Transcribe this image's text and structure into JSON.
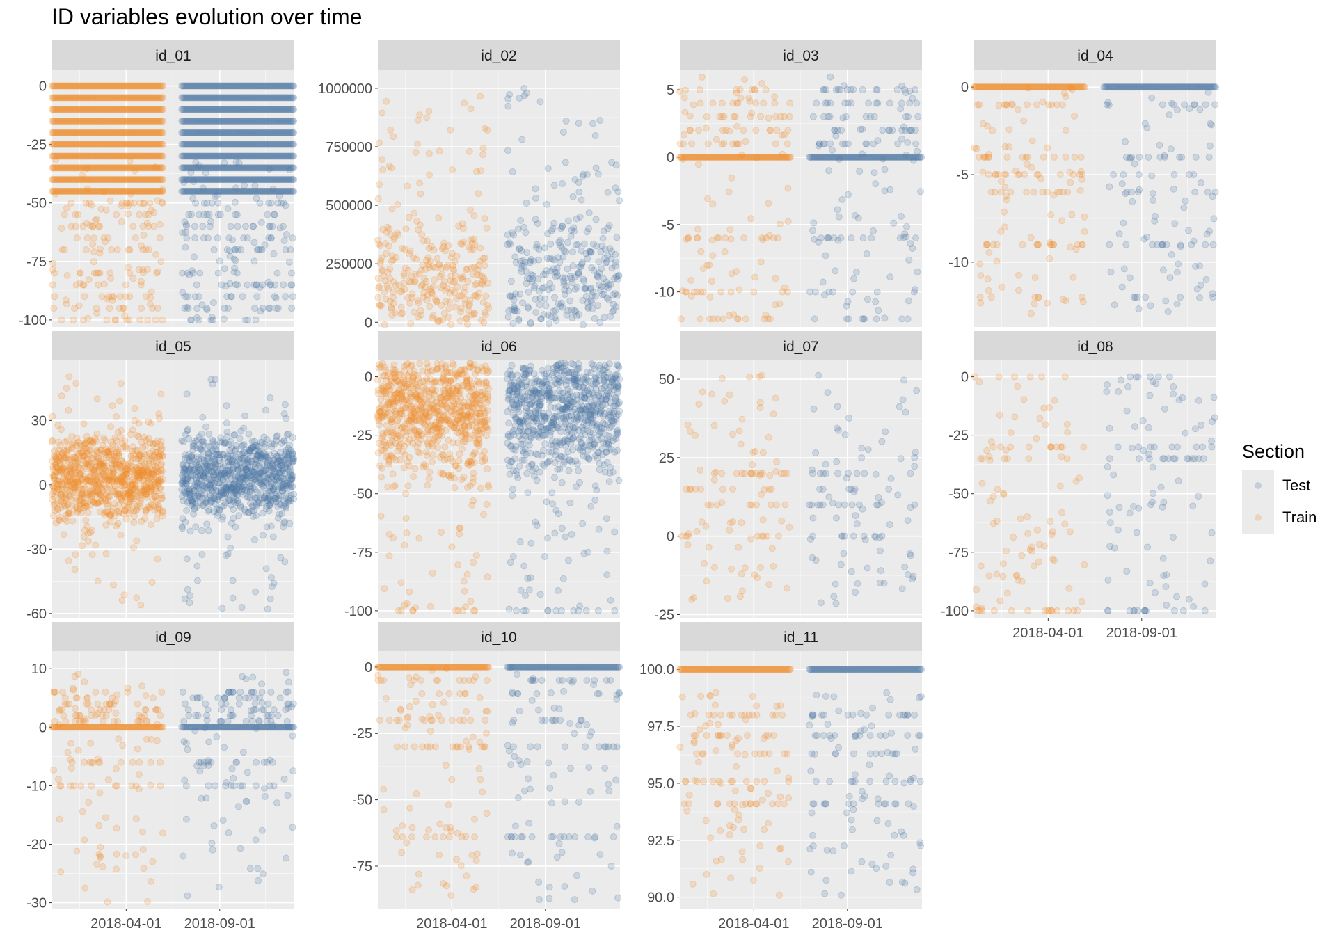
{
  "chart_data": {
    "type": "scatter",
    "title": "ID variables evolution over time",
    "xlabel": "",
    "ylabel": "",
    "x_ticks": [
      "2018-04-01",
      "2018-09-01"
    ],
    "x_range": [
      "2017-12-01",
      "2019-01-01"
    ],
    "legend": {
      "title": "Section",
      "position": "right",
      "entries": [
        {
          "name": "Test",
          "color": "#4e79a7"
        },
        {
          "name": "Train",
          "color": "#f28e2b"
        }
      ]
    },
    "colors": {
      "Test": "#4e79a7",
      "Train": "#f28e2b",
      "panel_bg": "#ebebeb",
      "strip_bg": "#d9d9d9",
      "grid": "#ffffff"
    },
    "point_alpha": 0.2,
    "series_ranges": {
      "Train": [
        "2017-12-01",
        "2018-05-31"
      ],
      "Test": [
        "2018-07-01",
        "2018-12-31"
      ]
    },
    "facets": [
      {
        "name": "id_01",
        "ylim": [
          -103,
          7
        ],
        "y_ticks": [
          0,
          -25,
          -50,
          -75,
          -100
        ],
        "dense_levels": [
          0,
          -5,
          -10,
          -15,
          -20,
          -25,
          -30,
          -35,
          -40,
          -45
        ],
        "dense_spread": 0,
        "sparse_range": [
          -100,
          -30
        ],
        "frequent_values": [
          -50,
          -55,
          -60,
          -65,
          -70,
          -80,
          -85,
          -90,
          -95,
          -100
        ]
      },
      {
        "name": "id_02",
        "ylim": [
          -20000,
          1080000
        ],
        "y_ticks": [
          1000000,
          750000,
          500000,
          250000,
          0
        ],
        "dense_levels": [
          150000
        ],
        "dense_spread": 150000,
        "sparse_range": [
          0,
          1000000
        ],
        "frequent_values": []
      },
      {
        "name": "id_03",
        "ylim": [
          -12.6,
          6.5
        ],
        "y_ticks": [
          5,
          0,
          -5,
          -10
        ],
        "dense_levels": [
          0
        ],
        "dense_spread": 0,
        "sparse_range": [
          -12,
          6
        ],
        "frequent_values": [
          1,
          2,
          3,
          4,
          5,
          -6,
          -10,
          -12
        ]
      },
      {
        "name": "id_04",
        "ylim": [
          -13.7,
          1.0
        ],
        "y_ticks": [
          0,
          -5,
          -10
        ],
        "dense_levels": [
          0
        ],
        "dense_spread": 0,
        "sparse_range": [
          -13,
          0
        ],
        "frequent_values": [
          -1,
          -4,
          -5,
          -6,
          -9,
          -12
        ]
      },
      {
        "name": "id_05",
        "ylim": [
          -62,
          58
        ],
        "y_ticks": [
          30,
          0,
          -30,
          -60
        ],
        "dense_levels": [
          0,
          4,
          8
        ],
        "dense_spread": 9,
        "sparse_range": [
          -58,
          52
        ],
        "frequent_values": []
      },
      {
        "name": "id_06",
        "ylim": [
          -103,
          7
        ],
        "y_ticks": [
          0,
          -25,
          -50,
          -75,
          -100
        ],
        "dense_levels": [
          0,
          -10,
          -25
        ],
        "dense_spread": 10,
        "sparse_range": [
          -100,
          0
        ],
        "frequent_values": [
          -100
        ]
      },
      {
        "name": "id_07",
        "ylim": [
          -26,
          56
        ],
        "y_ticks": [
          50,
          25,
          0,
          -25
        ],
        "dense_levels": [],
        "dense_spread": 0,
        "sparse_range": [
          -22,
          52
        ],
        "frequent_values": [
          0,
          10,
          15,
          20
        ]
      },
      {
        "name": "id_08",
        "ylim": [
          -103,
          7
        ],
        "y_ticks": [
          0,
          -25,
          -50,
          -75,
          -100
        ],
        "dense_levels": [],
        "dense_spread": 0,
        "sparse_range": [
          -100,
          0
        ],
        "frequent_values": [
          -100,
          0,
          -30,
          -35
        ]
      },
      {
        "name": "id_09",
        "ylim": [
          -31,
          13
        ],
        "y_ticks": [
          10,
          0,
          -10,
          -20,
          -30
        ],
        "dense_levels": [
          0
        ],
        "dense_spread": 0,
        "sparse_range": [
          -30,
          10
        ],
        "frequent_values": [
          1,
          2,
          3,
          4,
          5,
          6,
          -6,
          -10
        ]
      },
      {
        "name": "id_10",
        "ylim": [
          -91,
          6
        ],
        "y_ticks": [
          0,
          -25,
          -50,
          -75
        ],
        "dense_levels": [
          0
        ],
        "dense_spread": 0,
        "sparse_range": [
          -88,
          0
        ],
        "frequent_values": [
          -5,
          -10,
          -20,
          -30,
          -64
        ]
      },
      {
        "name": "id_11",
        "ylim": [
          89.5,
          100.8
        ],
        "y_ticks": [
          100.0,
          97.5,
          95.0,
          92.5,
          90.0
        ],
        "dense_levels": [
          100
        ],
        "dense_spread": 0,
        "sparse_range": [
          90,
          99
        ],
        "frequent_values": [
          95.08,
          97.1,
          94.1,
          96.3,
          98.0
        ]
      }
    ]
  }
}
